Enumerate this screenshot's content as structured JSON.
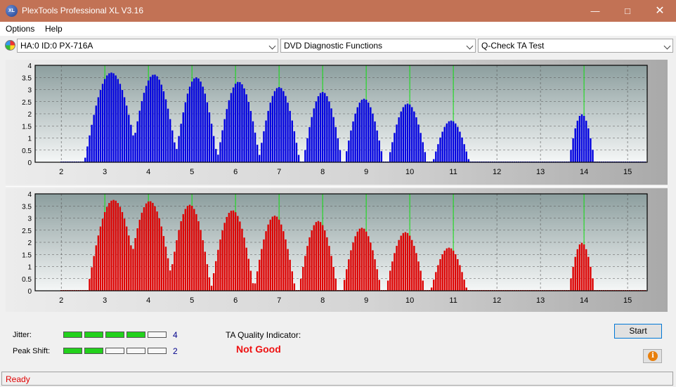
{
  "window": {
    "title": "PlexTools Professional XL V3.16",
    "minimize_icon": "minimize-icon",
    "maximize_icon": "maximize-icon",
    "close_icon": "close-icon"
  },
  "menu": {
    "items": [
      "Options",
      "Help"
    ]
  },
  "toolbar": {
    "drive": "HA:0 ID:0  PX-716A",
    "function": "DVD Diagnostic Functions",
    "test": "Q-Check TA Test"
  },
  "chart_data": [
    {
      "type": "bar",
      "name_hint": "",
      "color": "#0000e0",
      "x_ticks": [
        2,
        3,
        4,
        5,
        6,
        7,
        8,
        9,
        10,
        11,
        12,
        13,
        14,
        15
      ],
      "y_ticks": [
        "0",
        "0.5",
        "1",
        "1.5",
        "2",
        "2.5",
        "3",
        "3.5",
        "4"
      ],
      "xlim": [
        1.4,
        15.45
      ],
      "ylim": [
        0,
        4
      ],
      "green_lines": [
        3,
        4,
        5,
        6,
        7,
        8,
        9,
        10,
        11,
        14
      ],
      "peaks": [
        {
          "center": 3.15,
          "height": 3.7,
          "half_width": 0.62
        },
        {
          "center": 4.13,
          "height": 3.62,
          "half_width": 0.55
        },
        {
          "center": 5.1,
          "height": 3.5,
          "half_width": 0.5
        },
        {
          "center": 6.07,
          "height": 3.32,
          "half_width": 0.5
        },
        {
          "center": 7.0,
          "height": 3.1,
          "half_width": 0.48
        },
        {
          "center": 8.0,
          "height": 2.9,
          "half_width": 0.45
        },
        {
          "center": 8.95,
          "height": 2.62,
          "half_width": 0.45
        },
        {
          "center": 9.95,
          "height": 2.42,
          "half_width": 0.45
        },
        {
          "center": 10.95,
          "height": 1.72,
          "half_width": 0.42
        },
        {
          "center": 13.95,
          "height": 1.98,
          "half_width": 0.3
        }
      ]
    },
    {
      "type": "bar",
      "name_hint": "",
      "color": "#dd0000",
      "x_ticks": [
        2,
        3,
        4,
        5,
        6,
        7,
        8,
        9,
        10,
        11,
        12,
        13,
        14,
        15
      ],
      "y_ticks": [
        "0",
        "0.5",
        "1",
        "1.5",
        "2",
        "2.5",
        "3",
        "3.5",
        "4"
      ],
      "xlim": [
        1.4,
        15.45
      ],
      "ylim": [
        0,
        4
      ],
      "green_lines": [
        3,
        4,
        5,
        6,
        7,
        8,
        9,
        10,
        11,
        14
      ],
      "peaks": [
        {
          "center": 3.2,
          "height": 3.75,
          "half_width": 0.6
        },
        {
          "center": 4.03,
          "height": 3.7,
          "half_width": 0.55
        },
        {
          "center": 4.95,
          "height": 3.55,
          "half_width": 0.5
        },
        {
          "center": 5.93,
          "height": 3.32,
          "half_width": 0.5
        },
        {
          "center": 6.9,
          "height": 3.1,
          "half_width": 0.48
        },
        {
          "center": 7.9,
          "height": 2.88,
          "half_width": 0.45
        },
        {
          "center": 8.9,
          "height": 2.6,
          "half_width": 0.45
        },
        {
          "center": 9.9,
          "height": 2.42,
          "half_width": 0.45
        },
        {
          "center": 10.9,
          "height": 1.78,
          "half_width": 0.42
        },
        {
          "center": 13.95,
          "height": 1.98,
          "half_width": 0.3
        }
      ]
    }
  ],
  "quality": {
    "jitter_label": "Jitter:",
    "jitter_value": "4",
    "jitter_level": 4,
    "peak_shift_label": "Peak Shift:",
    "peak_shift_value": "2",
    "peak_shift_level": 2,
    "meter_max": 5,
    "ta_label": "TA Quality Indicator:",
    "ta_result": "Not Good"
  },
  "buttons": {
    "start": "Start",
    "info_icon": "info-icon"
  },
  "status": {
    "text": "Ready"
  }
}
